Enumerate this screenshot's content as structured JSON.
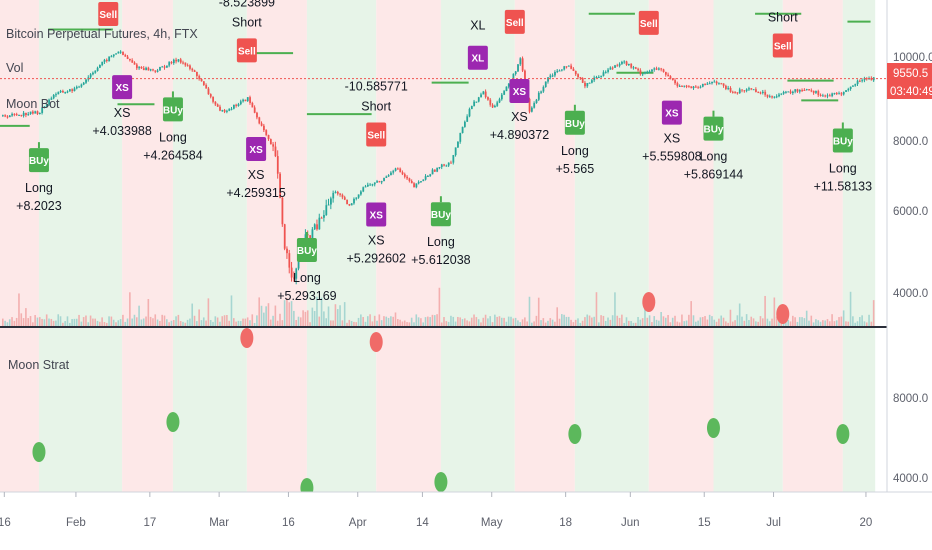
{
  "header": {
    "title": "Bitcoin Perpetual Futures, 4h, FTX",
    "vol_label": "Vol",
    "indicator_label": "Moon Bot"
  },
  "price_scale": {
    "ticks": [
      "10000.0",
      "8000.0",
      "6000.0",
      "4000.0"
    ],
    "last_price": "9550.5",
    "countdown": "03:40:49",
    "last_price_color": "#ef5350"
  },
  "lower_pane": {
    "title": "Moon Strat",
    "ticks": [
      "8000.0",
      "4000.0"
    ]
  },
  "time_axis": {
    "ticks": [
      {
        "t": 0.5,
        "label": "16"
      },
      {
        "t": 16,
        "label": "Feb"
      },
      {
        "t": 32,
        "label": "17"
      },
      {
        "t": 47,
        "label": "Mar"
      },
      {
        "t": 62,
        "label": "16"
      },
      {
        "t": 77,
        "label": "Apr"
      },
      {
        "t": 91,
        "label": "14"
      },
      {
        "t": 106,
        "label": "May"
      },
      {
        "t": 122,
        "label": "18"
      },
      {
        "t": 136,
        "label": "Jun"
      },
      {
        "t": 152,
        "label": "15"
      },
      {
        "t": 167,
        "label": "Jul"
      },
      {
        "t": 187,
        "label": "20"
      }
    ]
  },
  "colors": {
    "long_zone": "#e7f4e8",
    "short_zone": "#fde8e8",
    "buy": "#4caf50",
    "sell": "#ef5350",
    "xs": "#9c27b0",
    "xl": "#9c27b0",
    "candle_up": "#26a69a",
    "candle_down": "#ef5350",
    "target_line": "#4caf50"
  },
  "chart_data": {
    "type": "candlestick",
    "title": "Bitcoin Perpetual Futures, 4h, FTX",
    "x_unit": "days from Jan 16 2020",
    "price_range": [
      3200,
      11000
    ],
    "price_path": [
      [
        0,
        8600
      ],
      [
        8,
        8700
      ],
      [
        11,
        9150
      ],
      [
        16,
        9300
      ],
      [
        21,
        9900
      ],
      [
        25,
        10250
      ],
      [
        29,
        9850
      ],
      [
        33,
        9750
      ],
      [
        38,
        10050
      ],
      [
        42,
        9650
      ],
      [
        47,
        8700
      ],
      [
        50,
        8850
      ],
      [
        53,
        9050
      ],
      [
        57,
        8100
      ],
      [
        59,
        7600
      ],
      [
        61,
        5300
      ],
      [
        63,
        4400
      ],
      [
        65,
        5400
      ],
      [
        68,
        5800
      ],
      [
        72,
        6700
      ],
      [
        75,
        6300
      ],
      [
        78,
        6800
      ],
      [
        82,
        6950
      ],
      [
        85,
        7300
      ],
      [
        89,
        6800
      ],
      [
        93,
        7200
      ],
      [
        97,
        7450
      ],
      [
        101,
        8800
      ],
      [
        104,
        9200
      ],
      [
        106,
        8800
      ],
      [
        110,
        9500
      ],
      [
        112,
        10050
      ],
      [
        114,
        8700
      ],
      [
        118,
        9600
      ],
      [
        122,
        9900
      ],
      [
        126,
        9400
      ],
      [
        130,
        9700
      ],
      [
        134,
        10000
      ],
      [
        138,
        9700
      ],
      [
        142,
        9800
      ],
      [
        146,
        9400
      ],
      [
        150,
        9300
      ],
      [
        154,
        9500
      ],
      [
        158,
        9200
      ],
      [
        162,
        9300
      ],
      [
        166,
        9100
      ],
      [
        170,
        9200
      ],
      [
        174,
        9300
      ],
      [
        178,
        9100
      ],
      [
        182,
        9200
      ],
      [
        186,
        9550
      ],
      [
        189,
        9550
      ]
    ],
    "signals": [
      {
        "t": 8,
        "type": "Buy",
        "side": "Long",
        "value": "+8.2023"
      },
      {
        "t": 26,
        "type": "XS",
        "side": "XS",
        "value": "+4.033988"
      },
      {
        "t": 37,
        "type": "Buy",
        "side": "Long",
        "value": "+4.264584"
      },
      {
        "t": 23,
        "type": "Sell",
        "side": "",
        "value": ""
      },
      {
        "t": 53,
        "type": "Sell",
        "side": "Short",
        "value": "-8.523899"
      },
      {
        "t": 55,
        "type": "XS",
        "side": "XS",
        "value": "+4.259315"
      },
      {
        "t": 66,
        "type": "Buy",
        "side": "Long",
        "value": "+5.293169"
      },
      {
        "t": 81,
        "type": "XS",
        "side": "XS",
        "value": "+5.292602"
      },
      {
        "t": 81,
        "type": "Sell",
        "side": "Short",
        "value": "-10.585771"
      },
      {
        "t": 95,
        "type": "Buy",
        "side": "Long",
        "value": "+5.612038"
      },
      {
        "t": 103,
        "type": "XL",
        "side": "XL",
        "value": ""
      },
      {
        "t": 111,
        "type": "Sell",
        "side": "",
        "value": ""
      },
      {
        "t": 112,
        "type": "XS",
        "side": "XS",
        "value": "+4.890372"
      },
      {
        "t": 124,
        "type": "Buy",
        "side": "Long",
        "value": "+5.565"
      },
      {
        "t": 140,
        "type": "Sell",
        "side": "",
        "value": ""
      },
      {
        "t": 145,
        "type": "XS",
        "side": "XS",
        "value": "+5.559808"
      },
      {
        "t": 154,
        "type": "Buy",
        "side": "Long",
        "value": "+5.869144"
      },
      {
        "t": 169,
        "type": "Sell",
        "side": "Short",
        "value": ""
      },
      {
        "t": 182,
        "type": "Buy",
        "side": "Long",
        "value": "+11.58133"
      }
    ],
    "zones": [
      {
        "from": -2,
        "to": 8,
        "type": "short"
      },
      {
        "from": 8,
        "to": 26,
        "type": "long"
      },
      {
        "from": 26,
        "to": 37,
        "type": "short"
      },
      {
        "from": 37,
        "to": 53,
        "type": "long"
      },
      {
        "from": 53,
        "to": 66,
        "type": "short"
      },
      {
        "from": 66,
        "to": 81,
        "type": "long"
      },
      {
        "from": 81,
        "to": 95,
        "type": "short"
      },
      {
        "from": 95,
        "to": 111,
        "type": "long"
      },
      {
        "from": 111,
        "to": 124,
        "type": "short"
      },
      {
        "from": 124,
        "to": 140,
        "type": "long"
      },
      {
        "from": 140,
        "to": 154,
        "type": "short"
      },
      {
        "from": 154,
        "to": 169,
        "type": "long"
      },
      {
        "from": 169,
        "to": 182,
        "type": "short"
      },
      {
        "from": 182,
        "to": 189,
        "type": "long"
      }
    ],
    "lower_dots": [
      {
        "t": 8,
        "value": 5300,
        "kind": "buy"
      },
      {
        "t": 37,
        "value": 6800,
        "kind": "buy"
      },
      {
        "t": 53,
        "value": 11000,
        "kind": "sell"
      },
      {
        "t": 66,
        "value": 3500,
        "kind": "buy"
      },
      {
        "t": 81,
        "value": 10800,
        "kind": "sell"
      },
      {
        "t": 95,
        "value": 3800,
        "kind": "buy"
      },
      {
        "t": 124,
        "value": 6200,
        "kind": "buy"
      },
      {
        "t": 140,
        "value": 12800,
        "kind": "sell"
      },
      {
        "t": 154,
        "value": 6500,
        "kind": "buy"
      },
      {
        "t": 169,
        "value": 12200,
        "kind": "sell"
      },
      {
        "t": 182,
        "value": 6200,
        "kind": "buy"
      }
    ],
    "lower_range": [
      2900,
      12600
    ],
    "target_lines": [
      {
        "from": -2,
        "to": 6,
        "price": 8350
      },
      {
        "from": 10,
        "to": 24,
        "price": 10800
      },
      {
        "from": 25,
        "to": 33,
        "price": 8900
      },
      {
        "from": 54,
        "to": 63,
        "price": 10200
      },
      {
        "from": 66,
        "to": 80,
        "price": 8650
      },
      {
        "from": 93,
        "to": 101,
        "price": 9450
      },
      {
        "from": 127,
        "to": 137,
        "price": 11200
      },
      {
        "from": 133,
        "to": 141,
        "price": 9700
      },
      {
        "from": 163,
        "to": 173,
        "price": 11200
      },
      {
        "from": 170,
        "to": 180,
        "price": 9500
      },
      {
        "from": 173,
        "to": 181,
        "price": 9000
      },
      {
        "from": 183,
        "to": 188,
        "price": 11000
      }
    ]
  }
}
